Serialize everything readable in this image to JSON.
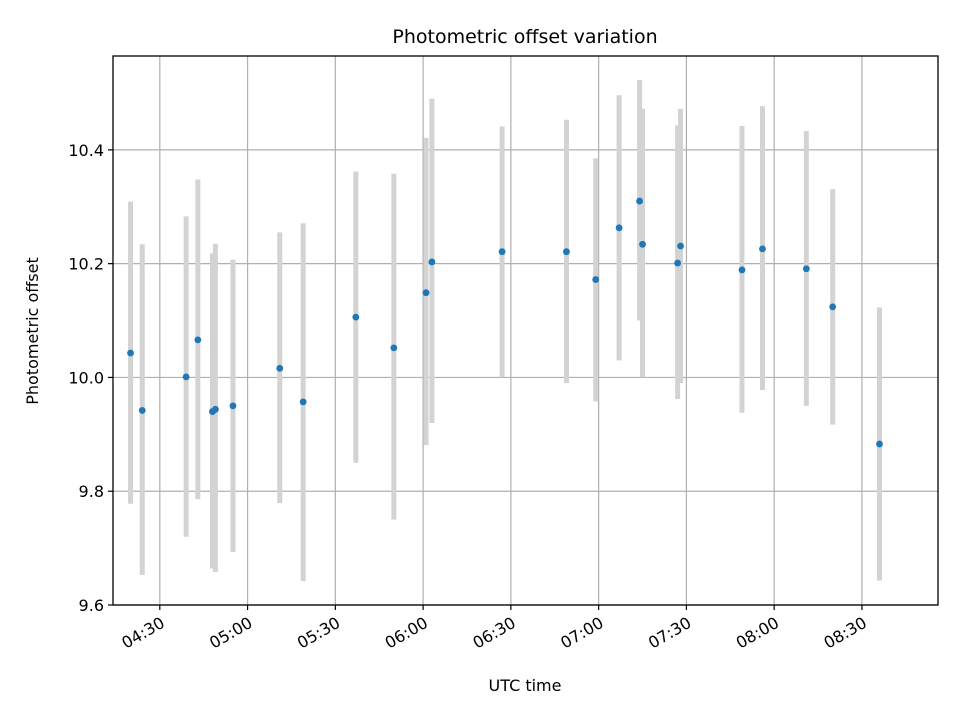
{
  "chart_data": {
    "type": "scatter",
    "title": "Photometric offset variation",
    "xlabel": "UTC time",
    "ylabel": "Photometric offset",
    "grid": true,
    "xlim": [
      "04:14",
      "08:56"
    ],
    "ylim": [
      9.6,
      10.565
    ],
    "x_ticks": [
      "04:30",
      "05:00",
      "05:30",
      "06:00",
      "06:30",
      "07:00",
      "07:30",
      "08:00",
      "08:30"
    ],
    "y_ticks": [
      "9.6",
      "9.8",
      "10.0",
      "10.2",
      "10.4"
    ],
    "colors": {
      "point": "#1f77b4",
      "errorbar": "#d3d3d3",
      "grid": "#b0b0b0"
    },
    "series": [
      {
        "points": [
          {
            "x": "04:20",
            "y": 10.043,
            "low": 9.778,
            "high": 10.309
          },
          {
            "x": "04:24",
            "y": 9.942,
            "low": 9.653,
            "high": 10.234
          },
          {
            "x": "04:39",
            "y": 10.001,
            "low": 9.72,
            "high": 10.283
          },
          {
            "x": "04:43",
            "y": 10.066,
            "low": 9.786,
            "high": 10.348
          },
          {
            "x": "04:48",
            "y": 9.94,
            "low": 9.664,
            "high": 10.218
          },
          {
            "x": "04:49",
            "y": 9.944,
            "low": 9.658,
            "high": 10.235
          },
          {
            "x": "04:55",
            "y": 9.95,
            "low": 9.693,
            "high": 10.207
          },
          {
            "x": "05:11",
            "y": 10.016,
            "low": 9.779,
            "high": 10.255
          },
          {
            "x": "05:19",
            "y": 9.957,
            "low": 9.642,
            "high": 10.271
          },
          {
            "x": "05:37",
            "y": 10.106,
            "low": 9.85,
            "high": 10.362
          },
          {
            "x": "05:50",
            "y": 10.052,
            "low": 9.75,
            "high": 10.358
          },
          {
            "x": "06:01",
            "y": 10.149,
            "low": 9.881,
            "high": 10.421
          },
          {
            "x": "06:03",
            "y": 10.203,
            "low": 9.92,
            "high": 10.49
          },
          {
            "x": "06:27",
            "y": 10.221,
            "low": 10.0,
            "high": 10.441
          },
          {
            "x": "06:49",
            "y": 10.221,
            "low": 9.99,
            "high": 10.453
          },
          {
            "x": "06:59",
            "y": 10.172,
            "low": 9.958,
            "high": 10.385
          },
          {
            "x": "07:07",
            "y": 10.263,
            "low": 10.03,
            "high": 10.496
          },
          {
            "x": "07:14",
            "y": 10.31,
            "low": 10.1,
            "high": 10.523
          },
          {
            "x": "07:15",
            "y": 10.234,
            "low": 10.0,
            "high": 10.472
          },
          {
            "x": "07:27",
            "y": 10.201,
            "low": 9.962,
            "high": 10.443
          },
          {
            "x": "07:28",
            "y": 10.231,
            "low": 9.99,
            "high": 10.472
          },
          {
            "x": "07:49",
            "y": 10.189,
            "low": 9.938,
            "high": 10.442
          },
          {
            "x": "07:56",
            "y": 10.226,
            "low": 9.978,
            "high": 10.477
          },
          {
            "x": "08:11",
            "y": 10.191,
            "low": 9.95,
            "high": 10.433
          },
          {
            "x": "08:20",
            "y": 10.124,
            "low": 9.917,
            "high": 10.331
          },
          {
            "x": "08:36",
            "y": 9.883,
            "low": 9.643,
            "high": 10.123
          }
        ]
      }
    ]
  }
}
